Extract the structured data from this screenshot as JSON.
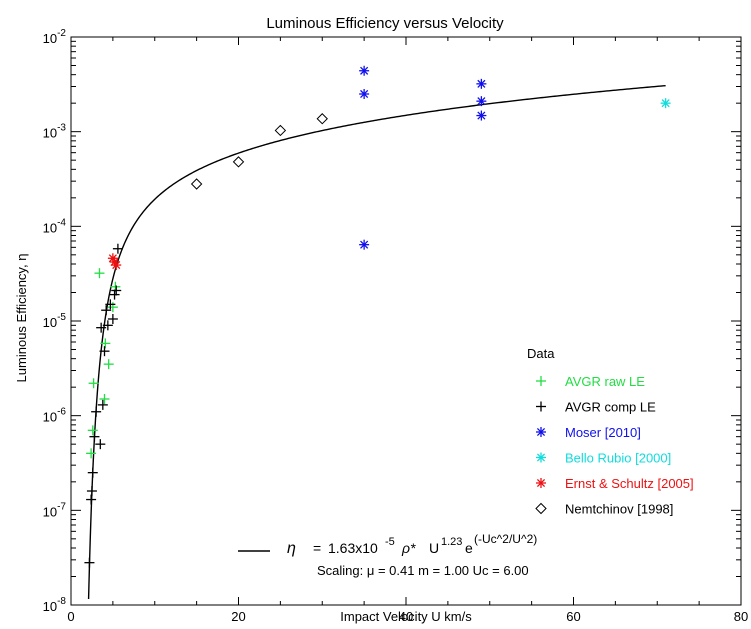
{
  "chart_data": {
    "type": "scatter",
    "title": "Luminous Efficiency versus Velocity",
    "xlabel": "Impact Velocity U km/s",
    "ylabel": "Luminous Efficiency, η",
    "xlim": [
      0,
      80
    ],
    "ylim": [
      1e-08,
      0.01
    ],
    "yscale": "log",
    "grid": false,
    "legend_placement": "right",
    "x_ticks": [
      {
        "value": 0,
        "label": "0"
      },
      {
        "value": 20,
        "label": "20"
      },
      {
        "value": 40,
        "label": "40"
      },
      {
        "value": 60,
        "label": "60"
      },
      {
        "value": 80,
        "label": "80"
      }
    ],
    "y_ticks": [
      {
        "value": 1e-08,
        "base": "10",
        "exp": "-8"
      },
      {
        "value": 1e-07,
        "base": "10",
        "exp": "-7"
      },
      {
        "value": 1e-06,
        "base": "10",
        "exp": "-6"
      },
      {
        "value": 1e-05,
        "base": "10",
        "exp": "-5"
      },
      {
        "value": 0.0001,
        "base": "10",
        "exp": "-4"
      },
      {
        "value": 0.001,
        "base": "10",
        "exp": "-3"
      },
      {
        "value": 0.01,
        "base": "10",
        "exp": "-2"
      }
    ],
    "legend_title": "Data",
    "series": [
      {
        "name": "AVGR raw LE",
        "marker": "plus",
        "color": "#22dd44",
        "points": [
          [
            2.4,
            4e-07
          ],
          [
            2.6,
            7e-07
          ],
          [
            2.7,
            2.2e-06
          ],
          [
            3.4,
            3.2e-05
          ],
          [
            4.0,
            1.5e-06
          ],
          [
            4.1,
            5.8e-06
          ],
          [
            4.5,
            3.5e-06
          ],
          [
            5.0,
            1.4e-05
          ],
          [
            5.3,
            2.3e-05
          ]
        ]
      },
      {
        "name": "AVGR comp LE",
        "marker": "plus",
        "color": "#000000",
        "points": [
          [
            2.2,
            2.8e-08
          ],
          [
            2.4,
            1.3e-07
          ],
          [
            2.5,
            1.6e-07
          ],
          [
            2.6,
            2.5e-07
          ],
          [
            2.8,
            6e-07
          ],
          [
            3.0,
            1.1e-06
          ],
          [
            3.5,
            5e-07
          ],
          [
            3.6,
            8.5e-06
          ],
          [
            3.8,
            1.3e-06
          ],
          [
            4.0,
            4.8e-06
          ],
          [
            4.2,
            1.3e-05
          ],
          [
            4.4,
            9e-06
          ],
          [
            4.7,
            1.5e-05
          ],
          [
            5.0,
            1.05e-05
          ],
          [
            5.2,
            1.9e-05
          ],
          [
            5.4,
            2.1e-05
          ],
          [
            5.6,
            5.8e-05
          ]
        ]
      },
      {
        "name": "Moser [2010]",
        "marker": "asterisk",
        "color": "#1010ee",
        "points": [
          [
            35,
            0.0044
          ],
          [
            35,
            0.0025
          ],
          [
            35,
            6.4e-05
          ],
          [
            49,
            0.0032
          ],
          [
            49,
            0.0021
          ],
          [
            49,
            0.00148
          ]
        ]
      },
      {
        "name": "Bello Rubio [2000]",
        "marker": "asterisk",
        "color": "#11dddd",
        "points": [
          [
            71,
            0.002
          ]
        ]
      },
      {
        "name": "Ernst & Schultz [2005]",
        "marker": "asterisk",
        "color": "#ee1111",
        "points": [
          [
            5.0,
            4.6e-05
          ],
          [
            5.2,
            4.2e-05
          ],
          [
            5.4,
            3.9e-05
          ]
        ]
      },
      {
        "name": "Nemtchinov [1998]",
        "marker": "diamond",
        "color": "#000000",
        "points": [
          [
            15,
            0.00028
          ],
          [
            20,
            0.00048
          ],
          [
            25,
            0.00103
          ],
          [
            30,
            0.00137
          ]
        ]
      }
    ],
    "fit": {
      "A": 1.63e-05,
      "p": 1.23,
      "Uc": 6.0,
      "x_start": 2.1,
      "x_end": 71,
      "formula_parts": {
        "eta": "η",
        "eq": "=",
        "coef": "1.63x10",
        "coef_exp": "-5",
        "rho": "ρ*",
        "u": "U",
        "u_exp": "1.23",
        "e": "e",
        "e_exp": "(-Uc^2/U^2)"
      },
      "scaling": "Scaling:  μ = 0.41 m = 1.00 Uc = 6.00"
    }
  }
}
